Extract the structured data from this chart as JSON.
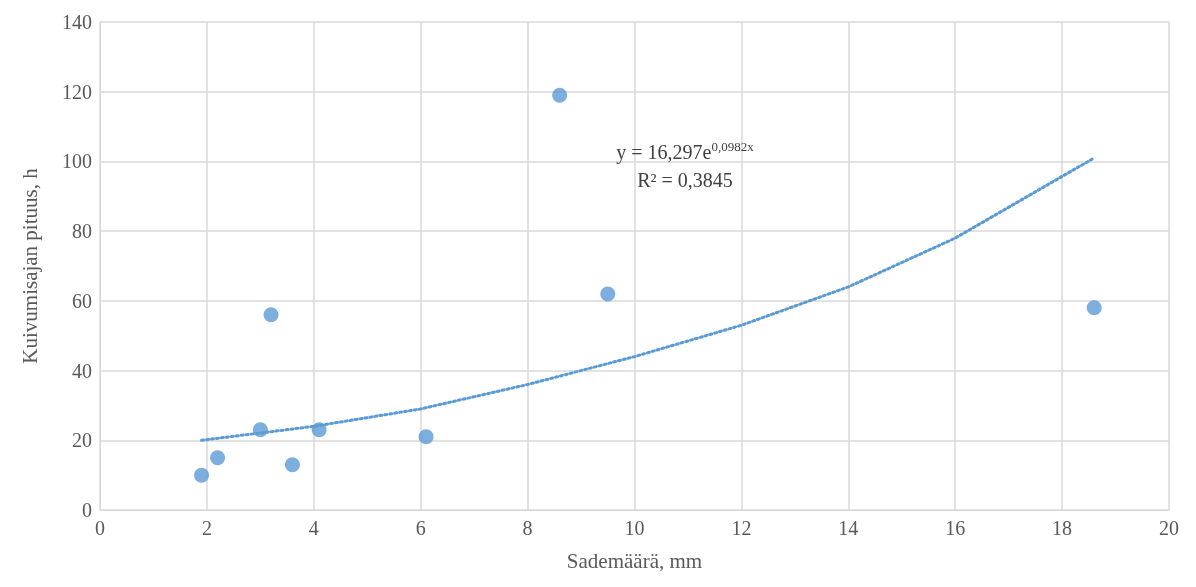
{
  "chart_data": {
    "type": "scatter",
    "xlabel": "Sademäärä, mm",
    "ylabel": "Kuivumisajan pituus, h",
    "xlim": [
      0,
      20
    ],
    "xticks": [
      0,
      2,
      4,
      6,
      8,
      10,
      12,
      14,
      16,
      18,
      20
    ],
    "ylim": [
      0,
      140
    ],
    "yticks": [
      0,
      20,
      40,
      60,
      80,
      100,
      120,
      140
    ],
    "grid": true,
    "series": [
      {
        "color": "#5b9bd5",
        "marker": "circle",
        "x": [
          1.9,
          2.2,
          3.0,
          3.2,
          3.6,
          4.1,
          6.1,
          8.6,
          9.5,
          18.6
        ],
        "values": [
          10,
          15,
          23,
          56,
          13,
          23,
          21,
          119,
          62,
          58
        ]
      },
      {
        "type": "line",
        "color": "#5b9bd5",
        "marker": "none",
        "line_style": "dotted",
        "x": [
          1.9,
          4,
          6,
          8,
          10,
          12,
          14,
          16,
          18.6
        ],
        "values": [
          20,
          24,
          29,
          36,
          44,
          53,
          64,
          78,
          101
        ]
      }
    ],
    "annotations": [
      "y = 16,297e$^{0,0982x}$",
      "R² = 0,3845"
    ]
  }
}
